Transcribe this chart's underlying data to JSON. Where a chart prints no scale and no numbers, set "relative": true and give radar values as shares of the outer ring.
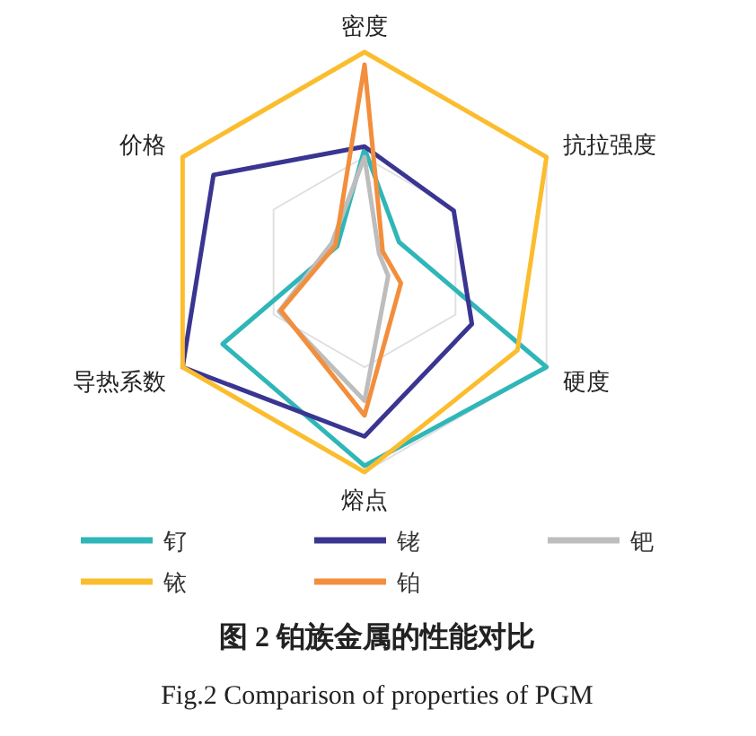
{
  "chart_data": {
    "type": "radar",
    "title": "图 2  铂族金属的性能对比",
    "subtitle": "Fig.2 Comparison of properties of PGM",
    "categories": [
      "密度",
      "抗拉强度",
      "硬度",
      "熔点",
      "导热系数",
      "价格"
    ],
    "relative": true,
    "grid": true,
    "legend": "bottom",
    "series": [
      {
        "name": "钌",
        "color": "#2fb6b8",
        "values": [
          0.54,
          0.19,
          1.0,
          0.97,
          0.78,
          0.15
        ]
      },
      {
        "name": "铑",
        "color": "#3a3591",
        "values": [
          0.55,
          0.49,
          0.59,
          0.83,
          1.0,
          0.83
        ]
      },
      {
        "name": "钯",
        "color": "#bdbdbd",
        "values": [
          0.5,
          0.08,
          0.13,
          0.66,
          0.47,
          0.18
        ]
      },
      {
        "name": "铱",
        "color": "#fbbd2e",
        "values": [
          1.0,
          1.0,
          0.84,
          1.0,
          1.0,
          1.0
        ]
      },
      {
        "name": "铂",
        "color": "#f28e3c",
        "values": [
          0.94,
          0.1,
          0.2,
          0.73,
          0.46,
          0.16
        ]
      }
    ]
  }
}
